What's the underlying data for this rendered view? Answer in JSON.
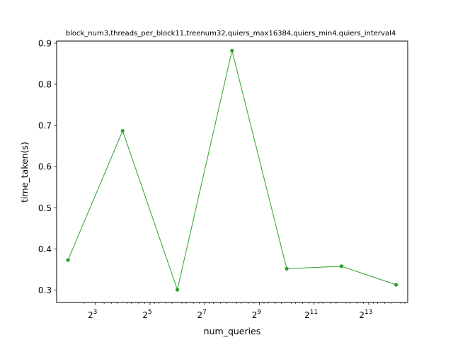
{
  "chart_data": {
    "type": "line",
    "title": "block_num3,threads_per_block11,treenum32,quiers_max16384,quiers_min4,quiers_interval4",
    "xlabel": "num_queries",
    "ylabel": "time_taken(s)",
    "x_scale": "log2",
    "xlim": [
      3.0,
      22000
    ],
    "ylim": [
      0.27,
      0.905
    ],
    "x_ticks": [
      {
        "value": 8,
        "base": "2",
        "exp": "3"
      },
      {
        "value": 32,
        "base": "2",
        "exp": "5"
      },
      {
        "value": 128,
        "base": "2",
        "exp": "7"
      },
      {
        "value": 512,
        "base": "2",
        "exp": "9"
      },
      {
        "value": 2048,
        "base": "2",
        "exp": "11"
      },
      {
        "value": 8192,
        "base": "2",
        "exp": "13"
      }
    ],
    "y_ticks": [
      0.3,
      0.4,
      0.5,
      0.6,
      0.7,
      0.8,
      0.9
    ],
    "grid": false,
    "legend": "none",
    "color": "#2ca02c",
    "series": [
      {
        "x": [
          4,
          16,
          64,
          256,
          1024,
          4096,
          16384
        ],
        "y": [
          0.373,
          0.687,
          0.301,
          0.882,
          0.352,
          0.358,
          0.313
        ]
      }
    ]
  }
}
